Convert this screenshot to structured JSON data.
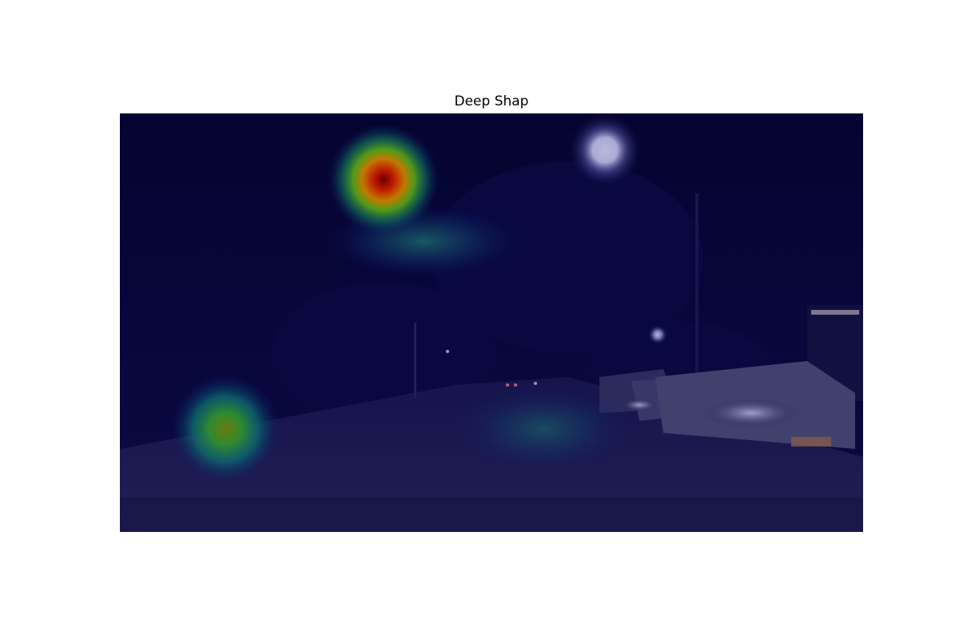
{
  "figure": {
    "title": "Deep Shap"
  },
  "heatmap_overlay": {
    "colormap": "jet",
    "base_tint": "#0a0a5a",
    "hotspots": [
      {
        "label": "upper-left-tree-area",
        "intensity": 1.0
      },
      {
        "label": "lower-left-roadside",
        "intensity": 0.55
      },
      {
        "label": "road-center",
        "intensity": 0.25
      },
      {
        "label": "below-upper-hotspot",
        "intensity": 0.3
      }
    ]
  },
  "scene": {
    "description_colors": {
      "sky": "#05041f",
      "road": "#1c1a3a",
      "street_light": "#e8e8ff",
      "car_body": "#8c8ca8"
    }
  }
}
